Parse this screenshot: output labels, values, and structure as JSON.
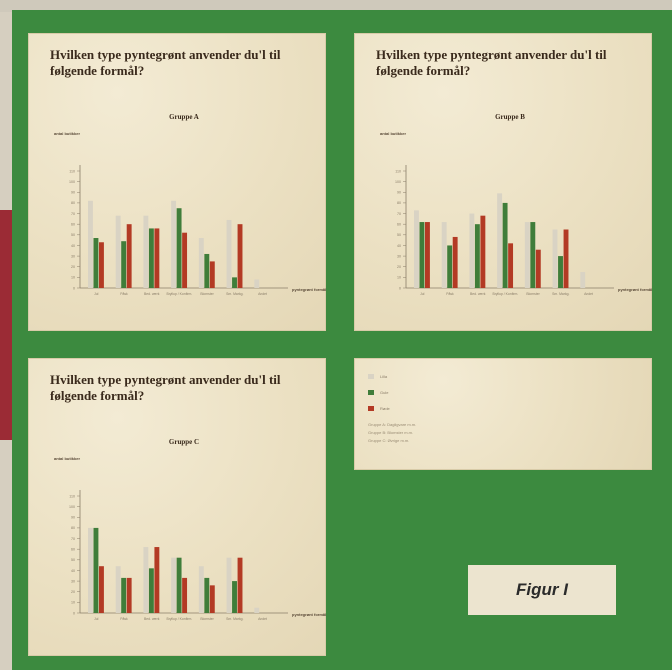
{
  "figure_label": "Figur I",
  "colors": {
    "board": "#3c8a3f",
    "series_a": "#d9d3c4",
    "series_b": "#3f7d3a",
    "series_c": "#b33a24"
  },
  "legend": {
    "items": [
      {
        "label": "Lilla",
        "color": "#d9d3c4"
      },
      {
        "label": "Gule",
        "color": "#3f7d3a"
      },
      {
        "label": "Røde",
        "color": "#b33a24"
      }
    ],
    "notes": [
      "Gruppe A: Dagligvare m.m.",
      "Gruppe B: Blomster m.m.",
      "Gruppe C: Øvrige m.m."
    ]
  },
  "panels": [
    {
      "title": "Hvilken type pyntegrønt anvender du'l til følgende formål?"
    },
    {
      "title": "Hvilken type pyntegrønt anvender du'l til følgende formål?"
    },
    {
      "title": "Hvilken type pyntegrønt anvender du'l til følgende formål?"
    }
  ],
  "chart_data": [
    {
      "type": "bar",
      "title": "Gruppe A",
      "ylabel": "antal butikker",
      "xlabel": "pyntegrønt formål",
      "ylim": [
        0,
        110
      ],
      "yticks": [
        "0",
        "10",
        "20",
        "30",
        "40",
        "50",
        "60",
        "70",
        "80",
        "90",
        "100",
        "110"
      ],
      "categories": [
        "Jul",
        "Påsk",
        "Bed. værk",
        "Bryllup / Konfirm.",
        "Blomster",
        "Sm. Markg.",
        "Andet"
      ],
      "series": [
        {
          "values": [
            82,
            68,
            68,
            82,
            47,
            64,
            8
          ]
        },
        {
          "values": [
            47,
            44,
            56,
            75,
            32,
            10,
            0
          ]
        },
        {
          "values": [
            43,
            60,
            56,
            52,
            25,
            60,
            0
          ]
        }
      ]
    },
    {
      "type": "bar",
      "title": "Gruppe B",
      "ylabel": "antal butikker",
      "xlabel": "pyntegrønt formål",
      "ylim": [
        0,
        110
      ],
      "yticks": [
        "0",
        "10",
        "20",
        "30",
        "40",
        "50",
        "60",
        "70",
        "80",
        "90",
        "100",
        "110"
      ],
      "categories": [
        "Jul",
        "Påsk",
        "Bed. værk",
        "Bryllup / Konfirm.",
        "Blomster",
        "Sm. Markg.",
        "Andet"
      ],
      "series": [
        {
          "values": [
            73,
            62,
            70,
            89,
            62,
            55,
            15
          ]
        },
        {
          "values": [
            62,
            40,
            60,
            80,
            62,
            30,
            0
          ]
        },
        {
          "values": [
            62,
            48,
            68,
            42,
            36,
            55,
            0
          ]
        }
      ]
    },
    {
      "type": "bar",
      "title": "Gruppe C",
      "ylabel": "antal butikker",
      "xlabel": "pyntegrønt formål",
      "ylim": [
        0,
        110
      ],
      "yticks": [
        "0",
        "10",
        "20",
        "30",
        "40",
        "50",
        "60",
        "70",
        "80",
        "90",
        "100",
        "110"
      ],
      "categories": [
        "Jul",
        "Påsk",
        "Bed. værk",
        "Bryllup / Konfirm.",
        "Blomster",
        "Sm. Markg.",
        "Andet"
      ],
      "series": [
        {
          "values": [
            80,
            44,
            62,
            52,
            44,
            52,
            5
          ]
        },
        {
          "values": [
            80,
            33,
            42,
            52,
            33,
            30,
            0
          ]
        },
        {
          "values": [
            44,
            33,
            62,
            33,
            26,
            52,
            0
          ]
        }
      ]
    }
  ]
}
